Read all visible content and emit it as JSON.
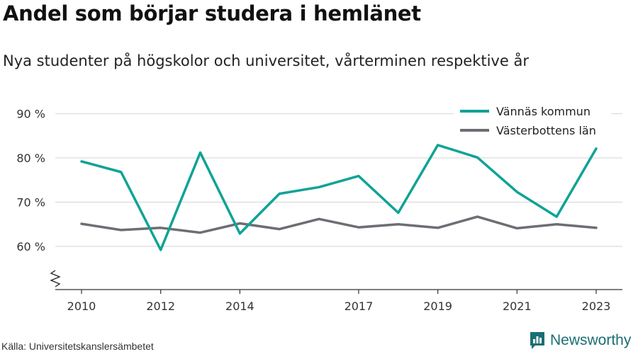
{
  "title": "Andel som börjar studera i hemlänet",
  "subtitle": "Nya studenter på högskolor och universitet, vårterminen respektive år",
  "source": "Källa: Universitetskanslersämbetet",
  "brand": {
    "name": "Newsworthy",
    "icon": "newsworthy-logo-icon",
    "color": "#1a6f73"
  },
  "chart_data": {
    "type": "line",
    "x": [
      2010,
      2011,
      2012,
      2013,
      2014,
      2015,
      2016,
      2017,
      2018,
      2019,
      2020,
      2021,
      2022,
      2023
    ],
    "x_tick_labels": [
      "2010",
      "2012",
      "2014",
      "2017",
      "2019",
      "2021",
      "2023"
    ],
    "y_tick_labels": [
      "60 %",
      "70 %",
      "80 %",
      "90 %"
    ],
    "ylim": [
      50,
      91
    ],
    "y_ticks": [
      60,
      70,
      80,
      90
    ],
    "y_axis_break": true,
    "grid": true,
    "legend_position": "top-right",
    "series": [
      {
        "name": "Vännäs kommun",
        "color": "#0fa396",
        "values": [
          79.2,
          76.8,
          59.2,
          81.2,
          62.9,
          71.9,
          73.4,
          75.9,
          67.6,
          82.9,
          80.1,
          72.3,
          66.7,
          82.1
        ]
      },
      {
        "name": "Västerbottens län",
        "color": "#6e6d74",
        "values": [
          65.1,
          63.7,
          64.2,
          63.1,
          65.2,
          63.9,
          66.2,
          64.3,
          65.0,
          64.2,
          66.7,
          64.1,
          65.0,
          64.2
        ]
      }
    ]
  }
}
